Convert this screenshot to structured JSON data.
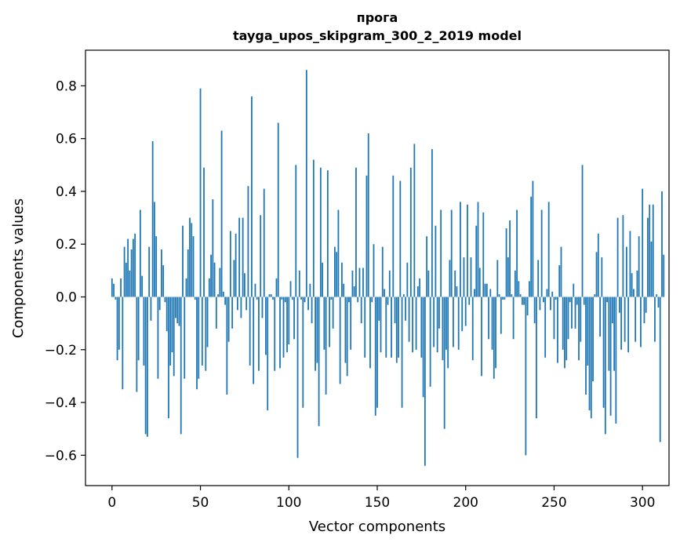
{
  "chart_data": {
    "type": "bar",
    "title": "прога",
    "subtitle": "tayga_upos_skipgram_300_2_2019 model",
    "xlabel": "Vector components",
    "ylabel": "Components values",
    "xlim": [
      -15,
      315
    ],
    "ylim": [
      -0.715,
      0.935
    ],
    "xticks": [
      0,
      50,
      100,
      150,
      200,
      250,
      300
    ],
    "xtick_labels": [
      "0",
      "50",
      "100",
      "150",
      "200",
      "250",
      "300"
    ],
    "yticks": [
      -0.6,
      -0.4,
      -0.2,
      0.0,
      0.2,
      0.4,
      0.6,
      0.8
    ],
    "ytick_labels": [
      "−0.6",
      "−0.4",
      "−0.2",
      "0.0",
      "0.2",
      "0.4",
      "0.6",
      "0.8"
    ],
    "bar_color": "#1f77b4",
    "values": [
      0.07,
      0.05,
      -0.01,
      -0.24,
      -0.2,
      0.07,
      -0.35,
      0.19,
      0.13,
      0.22,
      0.1,
      0.18,
      0.22,
      0.24,
      -0.36,
      -0.24,
      0.33,
      0.08,
      -0.26,
      -0.52,
      -0.53,
      0.19,
      -0.09,
      0.59,
      0.36,
      0.23,
      -0.31,
      -0.05,
      0.18,
      0.12,
      -0.02,
      -0.13,
      -0.46,
      -0.26,
      -0.21,
      -0.3,
      -0.08,
      -0.1,
      -0.11,
      -0.52,
      0.27,
      -0.31,
      0.07,
      0.18,
      0.3,
      0.28,
      0.23,
      -0.01,
      -0.35,
      -0.31,
      0.79,
      -0.26,
      0.49,
      -0.28,
      -0.19,
      0.07,
      0.16,
      0.37,
      0.13,
      -0.12,
      0.01,
      0.11,
      0.63,
      0.02,
      -0.03,
      -0.37,
      -0.17,
      0.25,
      -0.12,
      0.14,
      0.24,
      -0.05,
      0.3,
      -0.08,
      0.3,
      0.09,
      -0.05,
      0.42,
      -0.26,
      0.76,
      -0.33,
      0.05,
      -0.01,
      -0.28,
      0.31,
      -0.08,
      0.41,
      -0.22,
      -0.43,
      0.01,
      0.01,
      -0.01,
      -0.28,
      0.07,
      0.66,
      -0.27,
      -0.01,
      -0.23,
      -0.02,
      -0.21,
      -0.18,
      0.06,
      -0.01,
      -0.16,
      0.5,
      -0.61,
      0.1,
      -0.01,
      -0.42,
      -0.02,
      0.86,
      -0.05,
      0.05,
      -0.1,
      0.52,
      -0.28,
      -0.25,
      -0.49,
      0.49,
      0.13,
      -0.2,
      -0.37,
      0.48,
      -0.19,
      -0.01,
      -0.12,
      0.19,
      0.17,
      0.33,
      -0.33,
      0.13,
      0.05,
      -0.25,
      -0.3,
      -0.02,
      -0.2,
      0.1,
      0.04,
      0.49,
      -0.02,
      0.11,
      -0.1,
      0.11,
      -0.23,
      0.46,
      0.62,
      -0.27,
      -0.02,
      0.2,
      -0.45,
      -0.42,
      -0.09,
      -0.21,
      0.19,
      0.03,
      -0.23,
      -0.03,
      0.1,
      -0.23,
      0.46,
      -0.1,
      -0.25,
      -0.23,
      0.44,
      -0.42,
      0.01,
      -0.09,
      0.13,
      -0.17,
      0.49,
      -0.21,
      0.58,
      -0.2,
      0.04,
      0.07,
      -0.23,
      -0.38,
      -0.64,
      0.23,
      0.1,
      -0.34,
      0.56,
      -0.19,
      0.27,
      -0.21,
      -0.12,
      0.33,
      -0.24,
      -0.5,
      -0.2,
      -0.27,
      0.14,
      0.33,
      -0.19,
      0.1,
      0.04,
      -0.2,
      0.36,
      -0.13,
      0.15,
      -0.11,
      0.35,
      -0.03,
      0.15,
      -0.24,
      0.03,
      0.27,
      0.36,
      0.11,
      -0.3,
      0.32,
      0.05,
      0.05,
      -0.16,
      0.03,
      -0.2,
      -0.31,
      -0.27,
      0.14,
      0.01,
      -0.14,
      -0.01,
      -0.01,
      0.26,
      0.15,
      0.29,
      0.01,
      -0.16,
      0.1,
      0.33,
      0.06,
      0.01,
      -0.03,
      -0.03,
      -0.6,
      -0.07,
      0.06,
      0.38,
      0.44,
      -0.1,
      -0.46,
      0.14,
      -0.05,
      0.33,
      -0.02,
      -0.23,
      0.03,
      0.36,
      -0.05,
      0.02,
      -0.16,
      -0.01,
      -0.25,
      0.12,
      0.19,
      -0.2,
      -0.27,
      -0.24,
      -0.16,
      -0.02,
      -0.12,
      0.05,
      -0.12,
      -0.03,
      -0.24,
      -0.17,
      0.5,
      -0.03,
      -0.37,
      -0.26,
      -0.43,
      -0.46,
      -0.32,
      0.01,
      0.17,
      0.24,
      -0.15,
      0.15,
      -0.42,
      -0.52,
      -0.02,
      -0.28,
      -0.45,
      -0.1,
      -0.28,
      -0.48,
      0.3,
      -0.06,
      -0.2,
      0.31,
      -0.17,
      0.19,
      -0.21,
      0.25,
      0.09,
      0.03,
      -0.17,
      0.1,
      0.23,
      -0.19,
      0.41,
      -0.1,
      -0.06,
      0.3,
      0.35,
      0.21,
      0.35,
      -0.17,
      0.01,
      -0.04,
      -0.55,
      0.4,
      0.16
    ]
  }
}
